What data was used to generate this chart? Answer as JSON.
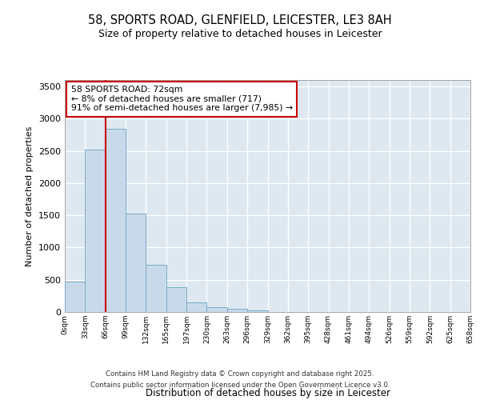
{
  "title_line1": "58, SPORTS ROAD, GLENFIELD, LEICESTER, LE3 8AH",
  "title_line2": "Size of property relative to detached houses in Leicester",
  "xlabel": "Distribution of detached houses by size in Leicester",
  "ylabel": "Number of detached properties",
  "bin_labels": [
    "0sqm",
    "33sqm",
    "66sqm",
    "99sqm",
    "132sqm",
    "165sqm",
    "197sqm",
    "230sqm",
    "263sqm",
    "296sqm",
    "329sqm",
    "362sqm",
    "395sqm",
    "428sqm",
    "461sqm",
    "494sqm",
    "526sqm",
    "559sqm",
    "592sqm",
    "625sqm",
    "658sqm"
  ],
  "bar_values": [
    470,
    2520,
    2840,
    1530,
    730,
    380,
    155,
    75,
    55,
    30,
    5,
    2,
    1,
    0,
    0,
    0,
    0,
    0,
    0,
    0
  ],
  "bar_color": "#c8daea",
  "bar_edge_color": "#7aaac8",
  "plot_bg_color": "#dde8f0",
  "fig_bg_color": "#ffffff",
  "grid_color": "#ffffff",
  "vline_color": "#cc0000",
  "annotation_text": "58 SPORTS ROAD: 72sqm\n← 8% of detached houses are smaller (717)\n91% of semi-detached houses are larger (7,985) →",
  "annotation_box_color": "#cc0000",
  "ylim": [
    0,
    3600
  ],
  "yticks": [
    0,
    500,
    1000,
    1500,
    2000,
    2500,
    3000,
    3500
  ],
  "footer_line1": "Contains HM Land Registry data © Crown copyright and database right 2025.",
  "footer_line2": "Contains public sector information licensed under the Open Government Licence v3.0."
}
